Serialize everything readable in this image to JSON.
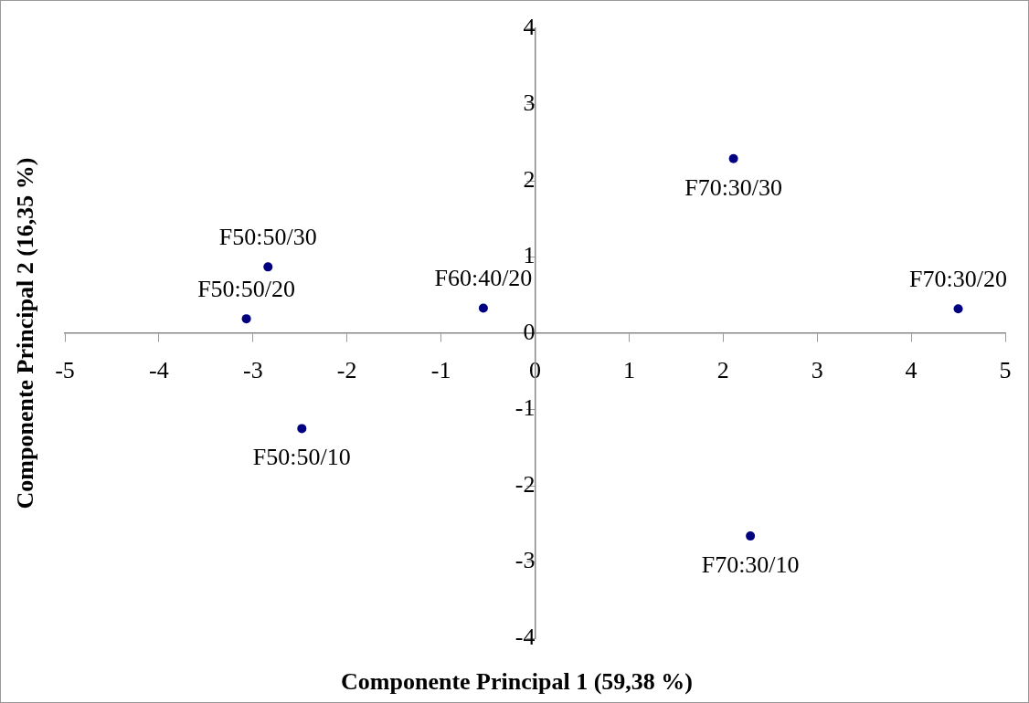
{
  "chart_data": {
    "type": "scatter",
    "xlabel": "Componente Principal 1 (59,38 %)",
    "ylabel": "Componente Principal 2 (16,35 %)",
    "x": [
      -2.84,
      -3.07,
      -2.48,
      -0.55,
      2.11,
      4.5,
      2.29
    ],
    "series": [
      {
        "color": "#000080",
        "values": [
          0.87,
          0.19,
          -1.25,
          0.33,
          2.29,
          0.32,
          -2.66
        ]
      }
    ],
    "annotations": [
      {
        "text": "F50:50/30",
        "x": -2.84,
        "y": 0.87
      },
      {
        "text": "F50:50/20",
        "x": -3.07,
        "y": 0.19
      },
      {
        "text": "F50:50/10",
        "x": -2.48,
        "y": -1.25
      },
      {
        "text": "F60:40/20",
        "x": -0.55,
        "y": 0.33
      },
      {
        "text": "F70:30/30",
        "x": 2.11,
        "y": 2.29
      },
      {
        "text": "F70:30/20",
        "x": 4.5,
        "y": 0.32
      },
      {
        "text": "F70:30/10",
        "x": 2.29,
        "y": -2.66
      }
    ],
    "xlim": [
      -5,
      5
    ],
    "xticks": [
      -5,
      -4,
      -3,
      -2,
      -1,
      0,
      1,
      2,
      3,
      4,
      5
    ],
    "ylim": [
      -4,
      4
    ],
    "yticks": [
      -4,
      -3,
      -2,
      -1,
      0,
      1,
      2,
      3,
      4
    ],
    "grid": false,
    "legend": false,
    "marker": "circle"
  }
}
